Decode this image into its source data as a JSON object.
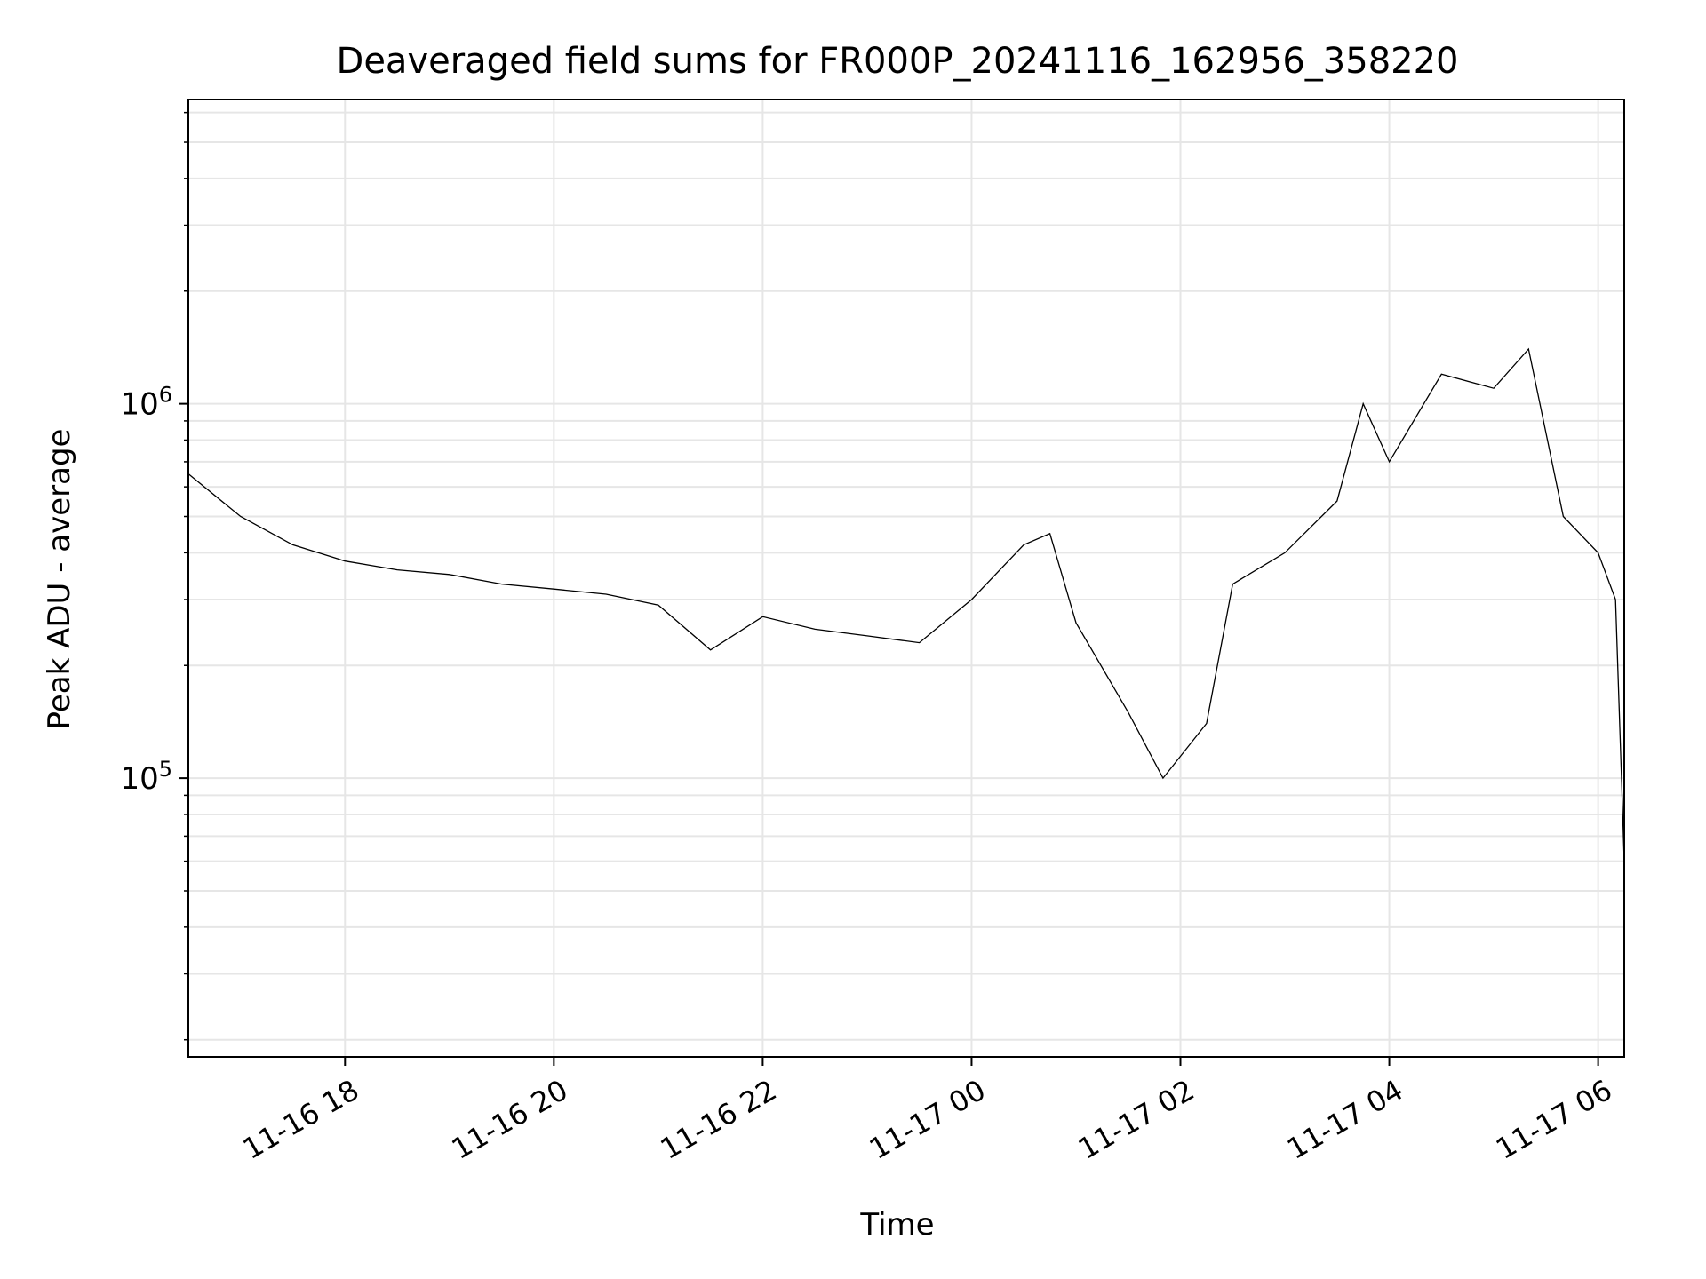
{
  "chart_data": {
    "type": "line",
    "title": "Deaveraged field sums for FR000P_20241116_162956_358220",
    "xlabel": "Time",
    "ylabel": "Peak ADU - average",
    "x_range": [
      "2024-11-16 16:30",
      "2024-11-17 06:15"
    ],
    "xticks": [
      {
        "value": "2024-11-16 18:00",
        "label": "11-16 18"
      },
      {
        "value": "2024-11-16 20:00",
        "label": "11-16 20"
      },
      {
        "value": "2024-11-16 22:00",
        "label": "11-16 22"
      },
      {
        "value": "2024-11-17 00:00",
        "label": "11-17 00"
      },
      {
        "value": "2024-11-17 02:00",
        "label": "11-17 02"
      },
      {
        "value": "2024-11-17 04:00",
        "label": "11-17 04"
      },
      {
        "value": "2024-11-17 06:00",
        "label": "11-17 06"
      }
    ],
    "y_scale": "log",
    "ylim": [
      18000,
      6500000
    ],
    "yticks": [
      {
        "value": 100000,
        "base": "10",
        "exp": "5"
      },
      {
        "value": 1000000,
        "base": "10",
        "exp": "6"
      }
    ],
    "grid": true,
    "line_color": "#000000",
    "grid_color": "#e6e6e6",
    "series": [
      {
        "name": "",
        "points": [
          {
            "x": "2024-11-16 16:30",
            "y": 650000
          },
          {
            "x": "2024-11-16 17:00",
            "y": 500000
          },
          {
            "x": "2024-11-16 17:30",
            "y": 420000
          },
          {
            "x": "2024-11-16 18:00",
            "y": 380000
          },
          {
            "x": "2024-11-16 18:30",
            "y": 360000
          },
          {
            "x": "2024-11-16 19:00",
            "y": 350000
          },
          {
            "x": "2024-11-16 19:30",
            "y": 330000
          },
          {
            "x": "2024-11-16 20:00",
            "y": 320000
          },
          {
            "x": "2024-11-16 20:30",
            "y": 310000
          },
          {
            "x": "2024-11-16 21:00",
            "y": 290000
          },
          {
            "x": "2024-11-16 21:30",
            "y": 220000
          },
          {
            "x": "2024-11-16 22:00",
            "y": 270000
          },
          {
            "x": "2024-11-16 22:30",
            "y": 250000
          },
          {
            "x": "2024-11-16 23:00",
            "y": 240000
          },
          {
            "x": "2024-11-16 23:30",
            "y": 230000
          },
          {
            "x": "2024-11-17 00:00",
            "y": 300000
          },
          {
            "x": "2024-11-17 00:30",
            "y": 420000
          },
          {
            "x": "2024-11-17 00:45",
            "y": 450000
          },
          {
            "x": "2024-11-17 01:00",
            "y": 260000
          },
          {
            "x": "2024-11-17 01:30",
            "y": 150000
          },
          {
            "x": "2024-11-17 01:50",
            "y": 100000
          },
          {
            "x": "2024-11-17 02:15",
            "y": 140000
          },
          {
            "x": "2024-11-17 02:30",
            "y": 330000
          },
          {
            "x": "2024-11-17 03:00",
            "y": 400000
          },
          {
            "x": "2024-11-17 03:30",
            "y": 550000
          },
          {
            "x": "2024-11-17 03:45",
            "y": 1000000
          },
          {
            "x": "2024-11-17 04:00",
            "y": 700000
          },
          {
            "x": "2024-11-17 04:30",
            "y": 1200000
          },
          {
            "x": "2024-11-17 05:00",
            "y": 1100000
          },
          {
            "x": "2024-11-17 05:20",
            "y": 1400000
          },
          {
            "x": "2024-11-17 05:40",
            "y": 500000
          },
          {
            "x": "2024-11-17 06:00",
            "y": 400000
          },
          {
            "x": "2024-11-17 06:10",
            "y": 300000
          },
          {
            "x": "2024-11-17 06:15",
            "y": 60000
          }
        ]
      }
    ]
  }
}
